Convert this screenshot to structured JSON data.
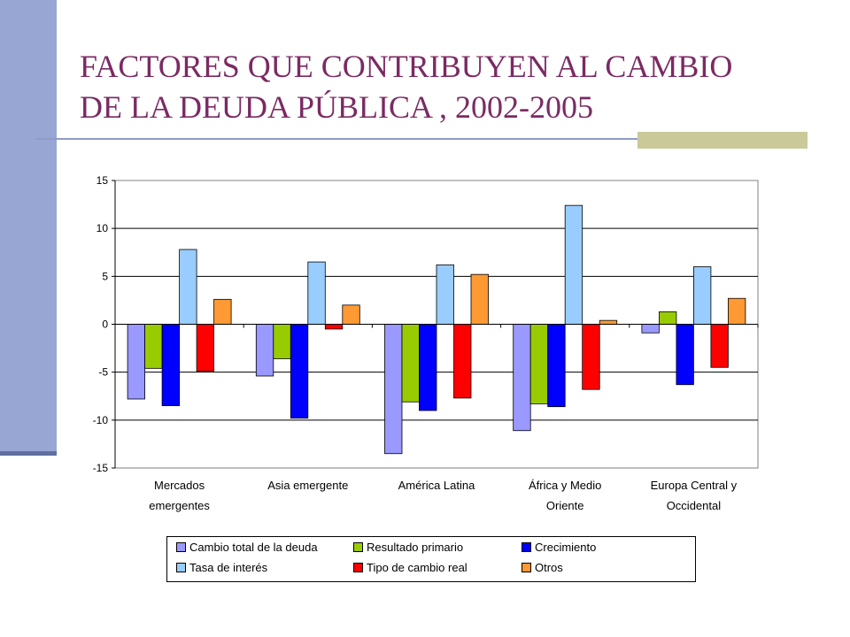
{
  "title": {
    "line1": "FACTORES QUE CONTRIBUYEN AL CAMBIO",
    "line2": "DE LA DEUDA PÚBLICA , 2002-2005"
  },
  "colors": {
    "title": "#7b2a63",
    "side_bar": "#98a6d4",
    "rule": "#8d9bc6",
    "rule_accent": "#c9c99a"
  },
  "chart_data": {
    "type": "bar",
    "categories": [
      [
        "Mercados",
        "emergentes"
      ],
      [
        "Asia emergente"
      ],
      [
        "América Latina"
      ],
      [
        "África y Medio",
        "Oriente"
      ],
      [
        "Europa Central y",
        "Occidental"
      ]
    ],
    "series": [
      {
        "name": "Cambio total de la deuda",
        "color": "#9999ff",
        "values": [
          -7.8,
          -5.4,
          -13.5,
          -11.1,
          -0.9
        ]
      },
      {
        "name": "Resultado primario",
        "color": "#99cc00",
        "values": [
          -4.6,
          -3.6,
          -8.1,
          -8.3,
          1.3
        ]
      },
      {
        "name": "Crecimiento",
        "color": "#0000ff",
        "values": [
          -8.5,
          -9.8,
          -9.0,
          -8.6,
          -6.3
        ]
      },
      {
        "name": "Tasa de interés",
        "color": "#99ccff",
        "values": [
          7.8,
          6.5,
          6.2,
          12.4,
          6.0
        ]
      },
      {
        "name": "Tipo de cambio real",
        "color": "#ff0000",
        "values": [
          -4.9,
          -0.5,
          -7.7,
          -6.8,
          -4.5
        ]
      },
      {
        "name": "Otros",
        "color": "#ff9933",
        "values": [
          2.6,
          2.0,
          5.2,
          0.4,
          2.7
        ]
      }
    ],
    "yticks": [
      "15",
      "10",
      "5",
      "0",
      "-5",
      "-10",
      "-15"
    ],
    "ylim": [
      -15,
      15
    ],
    "grid": true,
    "legend": "bottom"
  }
}
